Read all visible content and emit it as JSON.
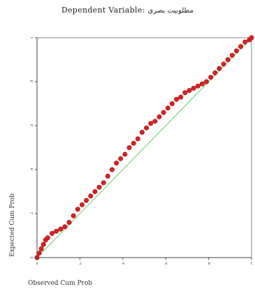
{
  "chart_data": {
    "type": "scatter",
    "title": "Dependent Variable: مطلوبيت بصرى",
    "title_prefix": "Dependent Variable:",
    "title_variable": "مطلوبيت بصرى",
    "xlabel": "Observed Cum Prob",
    "ylabel": "Expected Cum Prob",
    "xlim": [
      0,
      1
    ],
    "ylim": [
      0,
      1
    ],
    "x_ticks": [
      "0",
      ".2",
      ".4",
      ".6",
      ".8",
      "1"
    ],
    "y_ticks": [
      "0",
      ".2",
      ".4",
      ".6",
      ".8",
      "1"
    ],
    "grid": false,
    "colors": {
      "points": "#e02020",
      "point_outline": "#8a1010",
      "reference_line": "#66cc66",
      "axis": "#444444",
      "frame": "#888888"
    },
    "reference_line": {
      "x": [
        0,
        1
      ],
      "y": [
        0,
        1
      ]
    },
    "series": [
      {
        "x": [
          0.0,
          0.01,
          0.02,
          0.03,
          0.04,
          0.05,
          0.07,
          0.09,
          0.11,
          0.13,
          0.15,
          0.17,
          0.19,
          0.21,
          0.23,
          0.25,
          0.27,
          0.29,
          0.31,
          0.33,
          0.35,
          0.37,
          0.39,
          0.41,
          0.43,
          0.45,
          0.47,
          0.49,
          0.51,
          0.53,
          0.55,
          0.57,
          0.59,
          0.61,
          0.63,
          0.65,
          0.67,
          0.69,
          0.71,
          0.73,
          0.75,
          0.77,
          0.79,
          0.81,
          0.83,
          0.85,
          0.87,
          0.89,
          0.91,
          0.93,
          0.95,
          0.97,
          0.99,
          1.0
        ],
        "y": [
          0.0,
          0.02,
          0.04,
          0.06,
          0.08,
          0.09,
          0.11,
          0.12,
          0.13,
          0.14,
          0.16,
          0.19,
          0.22,
          0.24,
          0.26,
          0.28,
          0.3,
          0.32,
          0.34,
          0.37,
          0.4,
          0.43,
          0.45,
          0.47,
          0.5,
          0.52,
          0.54,
          0.57,
          0.59,
          0.61,
          0.62,
          0.64,
          0.66,
          0.68,
          0.7,
          0.72,
          0.73,
          0.75,
          0.76,
          0.77,
          0.78,
          0.79,
          0.8,
          0.82,
          0.84,
          0.86,
          0.88,
          0.9,
          0.92,
          0.94,
          0.96,
          0.98,
          0.99,
          1.0
        ]
      }
    ]
  }
}
